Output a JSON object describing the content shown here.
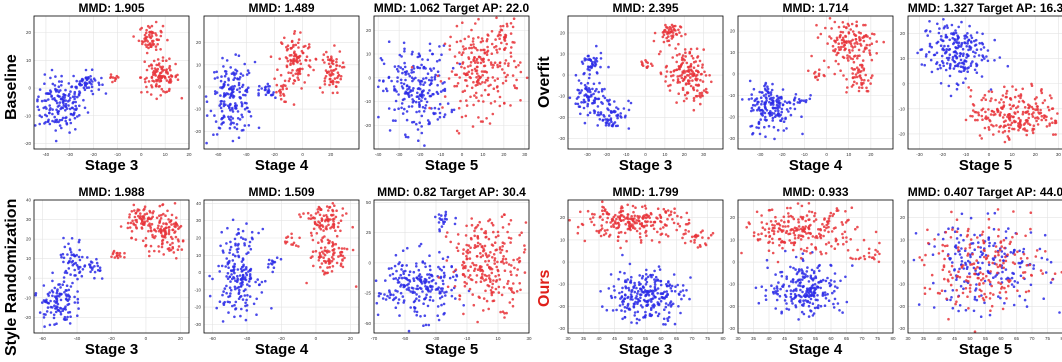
{
  "colors": {
    "source": "#2a2ae6",
    "target": "#e8343a"
  },
  "row_labels": [
    "Baseline",
    "Overfit",
    "Style Randomization",
    "Ours"
  ],
  "chart_data": [
    {
      "type": "scatter",
      "group": "Baseline",
      "title": "MMD: 1.905",
      "xlabel": "Stage 3",
      "xlim": [
        -45,
        20
      ],
      "ylim": [
        -22,
        26
      ],
      "xticks": [
        -40,
        -30,
        -20,
        -10,
        0,
        10,
        20
      ],
      "yticks": [
        -20,
        -10,
        0,
        10,
        20
      ],
      "series": [
        {
          "color": "source",
          "clusters": [
            {
              "cx": -34,
              "cy": -6,
              "sx": 5.5,
              "sy": 5,
              "n": 170
            },
            {
              "cx": -23,
              "cy": 2,
              "sx": 3,
              "sy": 2,
              "n": 50
            }
          ]
        },
        {
          "color": "target",
          "clusters": [
            {
              "cx": 4,
              "cy": 18,
              "sx": 2.5,
              "sy": 2.5,
              "n": 60
            },
            {
              "cx": 8,
              "cy": 4,
              "sx": 4,
              "sy": 3,
              "n": 110
            },
            {
              "cx": -12,
              "cy": 3,
              "sx": 1.5,
              "sy": 1,
              "n": 10
            }
          ]
        }
      ]
    },
    {
      "type": "scatter",
      "group": "Baseline",
      "title": "MMD: 1.489",
      "xlabel": "Stage 4",
      "xlim": [
        -70,
        40
      ],
      "ylim": [
        -28,
        32
      ],
      "xticks": [
        -60,
        -40,
        -20,
        0,
        20
      ],
      "yticks": [
        -20,
        -10,
        0,
        10,
        20
      ],
      "series": [
        {
          "color": "source",
          "clusters": [
            {
              "cx": -50,
              "cy": -5,
              "sx": 8,
              "sy": 8,
              "n": 180
            },
            {
              "cx": -25,
              "cy": -3,
              "sx": 3,
              "sy": 2,
              "n": 20
            }
          ]
        },
        {
          "color": "target",
          "clusters": [
            {
              "cx": -5,
              "cy": 12,
              "sx": 6,
              "sy": 7,
              "n": 110
            },
            {
              "cx": 20,
              "cy": 7,
              "sx": 4,
              "sy": 5,
              "n": 70
            },
            {
              "cx": -15,
              "cy": -3,
              "sx": 2,
              "sy": 2,
              "n": 15
            }
          ]
        }
      ]
    },
    {
      "type": "scatter",
      "group": "Baseline",
      "title": "MMD: 1.062  Target AP: 22.0",
      "xlabel": "Stage 5",
      "xlim": [
        -42,
        32
      ],
      "ylim": [
        -30,
        26
      ],
      "xticks": [
        -40,
        -30,
        -20,
        -10,
        0,
        10,
        20,
        30
      ],
      "yticks": [
        -20,
        -10,
        0,
        10,
        20
      ],
      "series": [
        {
          "color": "source",
          "clusters": [
            {
              "cx": -22,
              "cy": -5,
              "sx": 8,
              "sy": 9,
              "n": 230
            }
          ]
        },
        {
          "color": "target",
          "clusters": [
            {
              "cx": 10,
              "cy": 3,
              "sx": 9,
              "sy": 9,
              "n": 230
            },
            {
              "cx": 20,
              "cy": 18,
              "sx": 3,
              "sy": 3,
              "n": 30
            }
          ]
        }
      ]
    },
    {
      "type": "scatter",
      "group": "Overfit",
      "title": "MMD: 2.395",
      "xlabel": "Stage 3",
      "xlim": [
        -40,
        40
      ],
      "ylim": [
        -35,
        28
      ],
      "xticks": [
        -30,
        -20,
        -10,
        0,
        10,
        20,
        30
      ],
      "yticks": [
        -30,
        -20,
        -10,
        0,
        10,
        20
      ],
      "series": [
        {
          "color": "source",
          "clusters": [
            {
              "cx": -28,
              "cy": 5,
              "sx": 3,
              "sy": 3,
              "n": 40
            },
            {
              "cx": -30,
              "cy": -10,
              "sx": 4,
              "sy": 4,
              "n": 70
            },
            {
              "cx": -18,
              "cy": -18,
              "sx": 5,
              "sy": 4,
              "n": 70
            }
          ]
        },
        {
          "color": "target",
          "clusters": [
            {
              "cx": 12,
              "cy": 20,
              "sx": 3,
              "sy": 2.5,
              "n": 50
            },
            {
              "cx": 20,
              "cy": 2,
              "sx": 5,
              "sy": 5,
              "n": 120
            },
            {
              "cx": 26,
              "cy": -7,
              "sx": 3,
              "sy": 4,
              "n": 40
            },
            {
              "cx": 0,
              "cy": 5,
              "sx": 2,
              "sy": 1.5,
              "n": 12
            }
          ]
        }
      ]
    },
    {
      "type": "scatter",
      "group": "Overfit",
      "title": "MMD: 1.714",
      "xlabel": "Stage 4",
      "xlim": [
        -40,
        30
      ],
      "ylim": [
        -35,
        27
      ],
      "xticks": [
        -30,
        -20,
        -10,
        0,
        10,
        20
      ],
      "yticks": [
        -30,
        -20,
        -10,
        0,
        10,
        20
      ],
      "series": [
        {
          "color": "source",
          "clusters": [
            {
              "cx": -25,
              "cy": -15,
              "sx": 5,
              "sy": 6,
              "n": 170
            },
            {
              "cx": -12,
              "cy": -12,
              "sx": 2,
              "sy": 2,
              "n": 15
            }
          ]
        },
        {
          "color": "target",
          "clusters": [
            {
              "cx": 10,
              "cy": 15,
              "sx": 6,
              "sy": 5,
              "n": 140
            },
            {
              "cx": 15,
              "cy": -2,
              "sx": 3,
              "sy": 4,
              "n": 50
            },
            {
              "cx": -5,
              "cy": 0,
              "sx": 2,
              "sy": 1.5,
              "n": 12
            }
          ]
        }
      ]
    },
    {
      "type": "scatter",
      "group": "Overfit",
      "title": "MMD: 1.327  Target AP: 16.3",
      "xlabel": "Stage 5",
      "xlim": [
        -35,
        32
      ],
      "ylim": [
        -26,
        27
      ],
      "xticks": [
        -30,
        -20,
        -10,
        0,
        10,
        20,
        30
      ],
      "yticks": [
        -20,
        -10,
        0,
        10,
        20
      ],
      "series": [
        {
          "color": "source",
          "clusters": [
            {
              "cx": -15,
              "cy": 13,
              "sx": 7,
              "sy": 6,
              "n": 220
            }
          ]
        },
        {
          "color": "target",
          "clusters": [
            {
              "cx": 12,
              "cy": -12,
              "sx": 10,
              "sy": 5,
              "n": 240
            }
          ]
        }
      ]
    },
    {
      "type": "scatter",
      "group": "Style Randomization",
      "title": "MMD: 1.988",
      "xlabel": "Stage 3",
      "xlim": [
        -65,
        25
      ],
      "ylim": [
        -28,
        40
      ],
      "xticks": [
        -60,
        -40,
        -20,
        0,
        20
      ],
      "yticks": [
        -20,
        -10,
        0,
        10,
        20,
        30,
        40
      ],
      "series": [
        {
          "color": "source",
          "clusters": [
            {
              "cx": -52,
              "cy": -12,
              "sx": 5,
              "sy": 6,
              "n": 110
            },
            {
              "cx": -42,
              "cy": 8,
              "sx": 4,
              "sy": 6,
              "n": 60
            },
            {
              "cx": -30,
              "cy": 4,
              "sx": 2,
              "sy": 3,
              "n": 20
            }
          ]
        },
        {
          "color": "target",
          "clusters": [
            {
              "cx": -3,
              "cy": 30,
              "sx": 4,
              "sy": 4,
              "n": 70
            },
            {
              "cx": 12,
              "cy": 22,
              "sx": 6,
              "sy": 6,
              "n": 120
            },
            {
              "cx": -17,
              "cy": 12,
              "sx": 2,
              "sy": 2,
              "n": 15
            }
          ]
        }
      ]
    },
    {
      "type": "scatter",
      "group": "Style Randomization",
      "title": "MMD: 1.509",
      "xlabel": "Stage 4",
      "xlim": [
        -65,
        25
      ],
      "ylim": [
        -35,
        42
      ],
      "xticks": [
        -60,
        -40,
        -20,
        0,
        20
      ],
      "yticks": [
        -30,
        -20,
        -10,
        0,
        10,
        20,
        30,
        40
      ],
      "series": [
        {
          "color": "source",
          "clusters": [
            {
              "cx": -45,
              "cy": 0,
              "sx": 6,
              "sy": 12,
              "n": 190
            },
            {
              "cx": -25,
              "cy": 5,
              "sx": 2,
              "sy": 2,
              "n": 12
            }
          ]
        },
        {
          "color": "target",
          "clusters": [
            {
              "cx": 5,
              "cy": 30,
              "sx": 6,
              "sy": 5,
              "n": 90
            },
            {
              "cx": 8,
              "cy": 10,
              "sx": 6,
              "sy": 6,
              "n": 90
            },
            {
              "cx": -15,
              "cy": 18,
              "sx": 2,
              "sy": 2,
              "n": 12
            }
          ]
        }
      ]
    },
    {
      "type": "scatter",
      "group": "Style Randomization",
      "title": "MMD: 0.82  Target AP: 30.4",
      "xlabel": "Stage 5",
      "xlim": [
        -70,
        30
      ],
      "ylim": [
        -58,
        52
      ],
      "xticks": [
        -70,
        -50,
        -30,
        -10,
        10,
        30
      ],
      "yticks": [
        -50,
        -25,
        0,
        25,
        50
      ],
      "series": [
        {
          "color": "source",
          "clusters": [
            {
              "cx": -42,
              "cy": -20,
              "sx": 13,
              "sy": 13,
              "n": 230
            },
            {
              "cx": -25,
              "cy": 35,
              "sx": 3,
              "sy": 4,
              "n": 20
            }
          ]
        },
        {
          "color": "target",
          "clusters": [
            {
              "cx": 5,
              "cy": 0,
              "sx": 13,
              "sy": 18,
              "n": 260
            }
          ]
        }
      ]
    },
    {
      "type": "scatter",
      "group": "Ours",
      "title": "MMD: 1.799",
      "xlabel": "Stage 3",
      "xlim": [
        30,
        80
      ],
      "ylim": [
        -32,
        28
      ],
      "xticks": [
        30,
        35,
        40,
        45,
        50,
        55,
        60,
        65,
        70,
        75,
        80
      ],
      "yticks": [
        -30,
        -20,
        -10,
        0,
        10,
        20
      ],
      "series": [
        {
          "color": "source",
          "clusters": [
            {
              "cx": 55,
              "cy": -15,
              "sx": 6,
              "sy": 6,
              "n": 260
            }
          ]
        },
        {
          "color": "target",
          "clusters": [
            {
              "cx": 50,
              "cy": 18,
              "sx": 9,
              "sy": 3.5,
              "n": 230
            },
            {
              "cx": 73,
              "cy": 10,
              "sx": 3,
              "sy": 3,
              "n": 25
            }
          ]
        }
      ]
    },
    {
      "type": "scatter",
      "group": "Ours",
      "title": "MMD: 0.933",
      "xlabel": "Stage 4",
      "xlim": [
        30,
        80
      ],
      "ylim": [
        -32,
        28
      ],
      "xticks": [
        30,
        35,
        40,
        45,
        50,
        55,
        60,
        65,
        70,
        75,
        80
      ],
      "yticks": [
        -30,
        -20,
        -10,
        0,
        10,
        20
      ],
      "series": [
        {
          "color": "source",
          "clusters": [
            {
              "cx": 52,
              "cy": -12,
              "sx": 6,
              "sy": 6,
              "n": 230
            }
          ]
        },
        {
          "color": "target",
          "clusters": [
            {
              "cx": 50,
              "cy": 14,
              "sx": 9,
              "sy": 5,
              "n": 230
            },
            {
              "cx": 72,
              "cy": 2,
              "sx": 3,
              "sy": 2,
              "n": 20
            }
          ]
        }
      ]
    },
    {
      "type": "scatter",
      "group": "Ours",
      "title": "MMD: 0.407  Target AP: 44.0",
      "xlabel": "Stage 5",
      "xlim": [
        30,
        80
      ],
      "ylim": [
        -32,
        28
      ],
      "xticks": [
        30,
        35,
        40,
        45,
        50,
        55,
        60,
        65,
        70,
        75,
        80
      ],
      "yticks": [
        -30,
        -20,
        -10,
        0,
        10,
        20
      ],
      "series": [
        {
          "color": "source",
          "clusters": [
            {
              "cx": 55,
              "cy": -2,
              "sx": 10,
              "sy": 10,
              "n": 200
            }
          ]
        },
        {
          "color": "target",
          "clusters": [
            {
              "cx": 55,
              "cy": -2,
              "sx": 10,
              "sy": 10,
              "n": 200
            }
          ]
        }
      ]
    }
  ]
}
